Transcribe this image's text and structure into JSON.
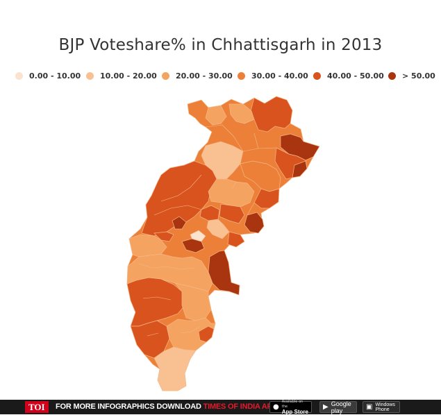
{
  "title": "BJP Voteshare% in Chhattisgarh in 2013",
  "legend": [
    {
      "label": "0.00 - 10.00",
      "color": "#fbe3cf"
    },
    {
      "label": "10.00 - 20.00",
      "color": "#f9c192"
    },
    {
      "label": "20.00 - 30.00",
      "color": "#f4a360"
    },
    {
      "label": "30.00 - 40.00",
      "color": "#ec8039"
    },
    {
      "label": "40.00 - 50.00",
      "color": "#d9531e"
    },
    {
      "label": "> 50.00",
      "color": "#a93410"
    }
  ],
  "footer": {
    "brand": "TOI",
    "promo_prefix": "FOR MORE  INFOGRAPHICS DOWNLOAD",
    "promo_app": "TIMES OF INDIA  APP",
    "appstore_small": "Available on the",
    "appstore_big": "App Store",
    "googleplay": "Google play",
    "windows_line1": "Windows",
    "windows_line2": "Phone"
  }
}
